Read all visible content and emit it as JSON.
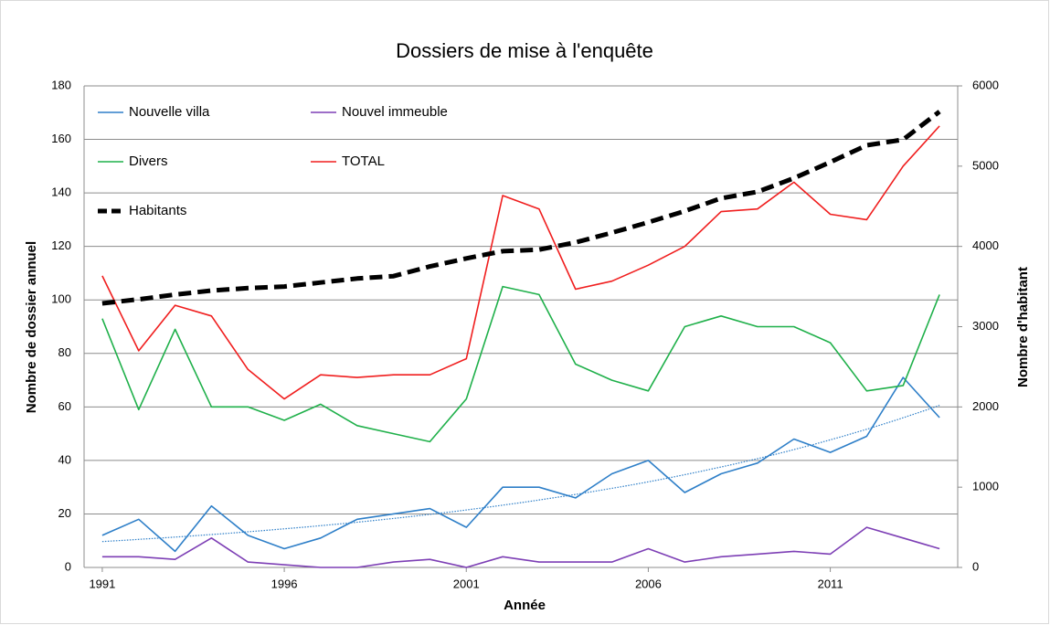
{
  "chart_data": {
    "type": "line",
    "title": "Dossiers de mise à l'enquête",
    "x_label": "Année",
    "y_label": "Nombre de dossier annuel",
    "y2_label": "Nombre d'habitant",
    "x": [
      1991,
      1992,
      1993,
      1994,
      1995,
      1996,
      1997,
      1998,
      1999,
      2000,
      2001,
      2002,
      2003,
      2004,
      2005,
      2006,
      2007,
      2008,
      2009,
      2010,
      2011,
      2012,
      2013,
      2014
    ],
    "xlim": [
      1990.5,
      2014.5
    ],
    "xticks": [
      1991,
      1996,
      2001,
      2006,
      2011
    ],
    "ylim": [
      0,
      180
    ],
    "yticks": [
      0,
      20,
      40,
      60,
      80,
      100,
      120,
      140,
      160,
      180
    ],
    "y2lim": [
      0,
      6000
    ],
    "y2ticks": [
      0,
      1000,
      2000,
      3000,
      4000,
      5000,
      6000
    ],
    "grid": true,
    "legend": "upper left",
    "series": [
      {
        "name": "Nouvelle villa",
        "color": "#2e7fc8",
        "trendline": "exponential",
        "values": [
          12,
          18,
          6,
          23,
          12,
          7,
          11,
          18,
          20,
          22,
          15,
          30,
          30,
          26,
          35,
          40,
          28,
          35,
          39,
          48,
          43,
          49,
          71,
          56
        ]
      },
      {
        "name": "Nouvel immeuble",
        "color": "#7d3fb5",
        "values": [
          4,
          4,
          3,
          11,
          2,
          1,
          0,
          0,
          2,
          3,
          0,
          4,
          2,
          2,
          2,
          7,
          2,
          4,
          5,
          6,
          5,
          15,
          11,
          7
        ]
      },
      {
        "name": "Divers",
        "color": "#1fb04a",
        "values": [
          93,
          59,
          89,
          60,
          60,
          55,
          61,
          53,
          50,
          47,
          63,
          105,
          102,
          76,
          70,
          66,
          90,
          94,
          90,
          90,
          84,
          66,
          68,
          102
        ]
      },
      {
        "name": "TOTAL",
        "color": "#f01e1e",
        "values": [
          109,
          81,
          98,
          94,
          74,
          63,
          72,
          71,
          72,
          72,
          78,
          139,
          134,
          104,
          107,
          113,
          120,
          133,
          134,
          144,
          132,
          130,
          150,
          165
        ]
      },
      {
        "name": "Habitants",
        "color": "#000000",
        "axis": "y2",
        "dashed": true,
        "values": [
          3290,
          3340,
          3400,
          3450,
          3480,
          3500,
          3550,
          3600,
          3630,
          3750,
          3850,
          3940,
          3960,
          4050,
          4170,
          4300,
          4440,
          4600,
          4680,
          4850,
          5050,
          5260,
          5330,
          5680
        ]
      }
    ]
  }
}
